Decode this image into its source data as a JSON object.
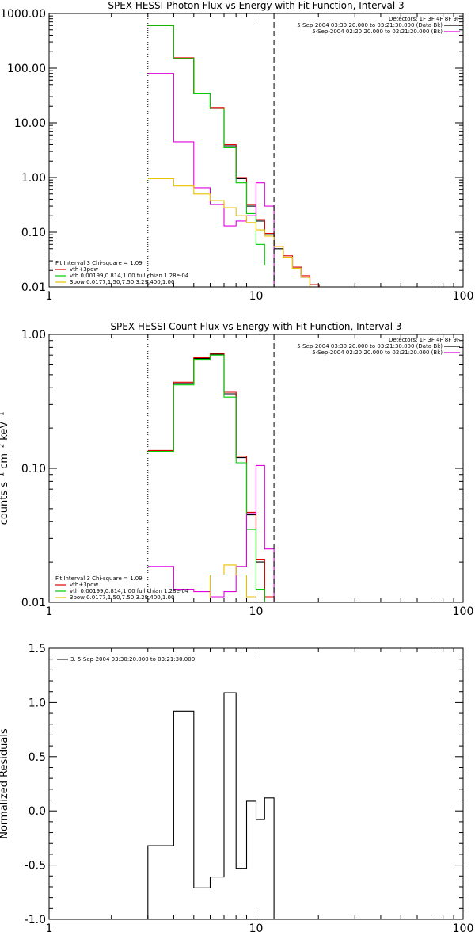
{
  "chart_data": [
    {
      "type": "line",
      "title": "SPEX HESSI Photon Flux vs Energy with Fit Function, Interval 3",
      "xscale": "log",
      "yscale": "log",
      "xlim": [
        1,
        100
      ],
      "ylim": [
        0.01,
        1000
      ],
      "x_tick_labels": [
        "1",
        "10",
        "100"
      ],
      "y_tick_labels": [
        "1000.00",
        "100.00",
        "10.00",
        "1.00",
        "0.10",
        "0.01"
      ],
      "ylabel": "",
      "detectors": "Detectors: 1F 3F 4F 8F 9F",
      "legend_top": [
        {
          "text": "5-Sep-2004 03:30:20.000 to 03:21:30.000 (Data-Bk)",
          "color": "#000000"
        },
        {
          "text": "5-Sep-2004 02:20:20.000 to 02:21:20.000 (Bk)",
          "color": "#e000e0"
        }
      ],
      "legend_bottom": [
        {
          "text": "Fit Interval 3   Chi-square = 1.09",
          "color": "#000000",
          "line": false
        },
        {
          "text": "vth+3pow",
          "color": "#e00000",
          "line": true
        },
        {
          "text": "vth 0.00199,0.814,1.00   full chian 1.28e-04",
          "color": "#00cc00",
          "line": true
        },
        {
          "text": "3pow 0.0177,1.50,7.50,3.29,400,1.00",
          "color": "#e8c000",
          "line": true
        }
      ],
      "vlines": [
        {
          "x": 3.0,
          "style": "dotted",
          "color": "#000000"
        },
        {
          "x": 12.2,
          "style": "dashed",
          "color": "#000000"
        }
      ],
      "series": [
        {
          "color": "#000000",
          "edges": [
            3.0,
            4.0,
            5.0,
            6.0,
            7.0,
            8.0,
            9.0,
            10.0,
            11.0,
            12.2,
            13.5,
            15.0,
            16.5,
            18.2,
            20.2
          ],
          "values": [
            600,
            150,
            35,
            18,
            3.8,
            0.95,
            0.3,
            0.16,
            0.09,
            0.05,
            0.035,
            0.022,
            0.015,
            0.01
          ]
        },
        {
          "color": "#e00000",
          "edges": [
            3.0,
            4.0,
            5.0,
            6.0,
            7.0,
            8.0,
            9.0,
            10.0,
            11.0,
            12.2,
            13.5,
            15.0,
            16.5,
            18.2,
            20.2
          ],
          "values": [
            600,
            155,
            35,
            19,
            4.0,
            1.0,
            0.32,
            0.17,
            0.095,
            0.055,
            0.037,
            0.023,
            0.016,
            0.011
          ]
        },
        {
          "color": "#00cc00",
          "edges": [
            3.0,
            4.0,
            5.0,
            6.0,
            7.0,
            8.0,
            9.0,
            10.0,
            11.0,
            12.2
          ],
          "values": [
            600,
            150,
            35,
            18,
            3.5,
            0.8,
            0.22,
            0.06,
            0.025
          ]
        },
        {
          "color": "#e000e0",
          "edges": [
            3.0,
            4.0,
            5.0,
            6.0,
            7.0,
            8.0,
            9.0,
            10.0,
            11.0,
            12.2
          ],
          "values": [
            80,
            4.5,
            0.65,
            0.32,
            0.13,
            0.16,
            0.2,
            0.8,
            0.3
          ]
        },
        {
          "color": "#e8c000",
          "edges": [
            3.0,
            4.0,
            5.0,
            6.0,
            7.0,
            8.0,
            9.0,
            10.0,
            11.0,
            12.2,
            13.5,
            15.0,
            16.5,
            18.2,
            20.2
          ],
          "values": [
            0.95,
            0.7,
            0.5,
            0.38,
            0.28,
            0.2,
            0.15,
            0.11,
            0.085,
            0.055,
            0.035,
            0.022,
            0.015,
            0.01
          ]
        }
      ]
    },
    {
      "type": "line",
      "title": "SPEX HESSI Count Flux vs Energy with Fit Function, Interval 3",
      "xscale": "log",
      "yscale": "log",
      "xlim": [
        1,
        100
      ],
      "ylim": [
        0.01,
        1.0
      ],
      "x_tick_labels": [
        "1",
        "10",
        "100"
      ],
      "y_tick_labels": [
        "1.00",
        "0.10",
        "0.01"
      ],
      "ylabel": "counts s⁻¹ cm⁻² keV⁻¹",
      "detectors": "Detectors: 1F 3F 4F 8F 9F",
      "legend_top": [
        {
          "text": "5-Sep-2004 03:30:20.000 to 03:21:30.000 (Data-Bk)",
          "color": "#000000"
        },
        {
          "text": "5-Sep-2004 02:20:20.000 to 02:21:20.000 (Bk)",
          "color": "#e000e0"
        }
      ],
      "legend_bottom": [
        {
          "text": "Fit Interval 3   Chi-square = 1.09",
          "color": "#000000",
          "line": false
        },
        {
          "text": "vth+3pow",
          "color": "#e00000",
          "line": true
        },
        {
          "text": "vth 0.00199,0.814,1.00   full chian 1.28e-04",
          "color": "#00cc00",
          "line": true
        },
        {
          "text": "3pow 0.0177,1.50,7.50,3.29,400,1.00",
          "color": "#e8c000",
          "line": true
        }
      ],
      "vlines": [
        {
          "x": 3.0,
          "style": "dotted",
          "color": "#000000"
        },
        {
          "x": 12.2,
          "style": "dashed",
          "color": "#000000"
        }
      ],
      "series": [
        {
          "color": "#000000",
          "edges": [
            3.0,
            4.0,
            5.0,
            6.0,
            7.0,
            8.0,
            9.0,
            10.0,
            11.0,
            12.2
          ],
          "values": [
            0.134,
            0.43,
            0.66,
            0.71,
            0.36,
            0.12,
            0.045,
            0.02,
            0.01
          ]
        },
        {
          "color": "#e00000",
          "edges": [
            3.0,
            4.0,
            5.0,
            6.0,
            7.0,
            8.0,
            9.0,
            10.0,
            11.0,
            12.2
          ],
          "values": [
            0.136,
            0.44,
            0.67,
            0.72,
            0.37,
            0.123,
            0.047,
            0.021,
            0.011
          ]
        },
        {
          "color": "#00cc00",
          "edges": [
            3.0,
            4.0,
            5.0,
            6.0,
            7.0,
            8.0,
            9.0,
            10.0,
            11.0,
            12.2
          ],
          "values": [
            0.134,
            0.42,
            0.65,
            0.7,
            0.34,
            0.11,
            0.035,
            0.0125,
            0.01
          ]
        },
        {
          "color": "#e000e0",
          "edges": [
            3.0,
            4.0,
            5.0,
            6.0,
            7.0,
            8.0,
            9.0,
            10.0,
            11.0,
            12.2
          ],
          "values": [
            0.0185,
            0.0125,
            0.012,
            0.011,
            0.012,
            0.0185,
            0.046,
            0.105,
            0.025
          ]
        },
        {
          "color": "#e8c000",
          "edges": [
            3.0,
            4.0,
            5.0,
            6.0,
            7.0,
            8.0,
            9.0,
            10.0,
            11.0,
            12.2
          ],
          "values": [
            0.01,
            0.01,
            0.01,
            0.016,
            0.019,
            0.016,
            0.011,
            0.01,
            0.01
          ]
        }
      ]
    },
    {
      "type": "line",
      "title": "",
      "xscale": "log",
      "yscale": "linear",
      "xlim": [
        1,
        100
      ],
      "ylim": [
        -1.0,
        1.5
      ],
      "x_tick_labels": [
        "1",
        "10",
        "100"
      ],
      "y_tick_labels": [
        "1.5",
        "1.0",
        "0.5",
        "0.0",
        "-0.5",
        "-1.0"
      ],
      "ylabel": "Normalized Residuals",
      "legend_top_left": "3.  5-Sep-2004 03:30:20.000 to 03:21:30.000",
      "series": [
        {
          "color": "#000000",
          "edges": [
            3.0,
            4.0,
            5.0,
            6.0,
            7.0,
            8.0,
            9.0,
            10.0,
            11.0,
            12.2
          ],
          "values": [
            -0.32,
            0.92,
            -0.71,
            -0.61,
            1.09,
            -0.53,
            0.09,
            -0.08,
            0.12
          ]
        }
      ]
    }
  ]
}
